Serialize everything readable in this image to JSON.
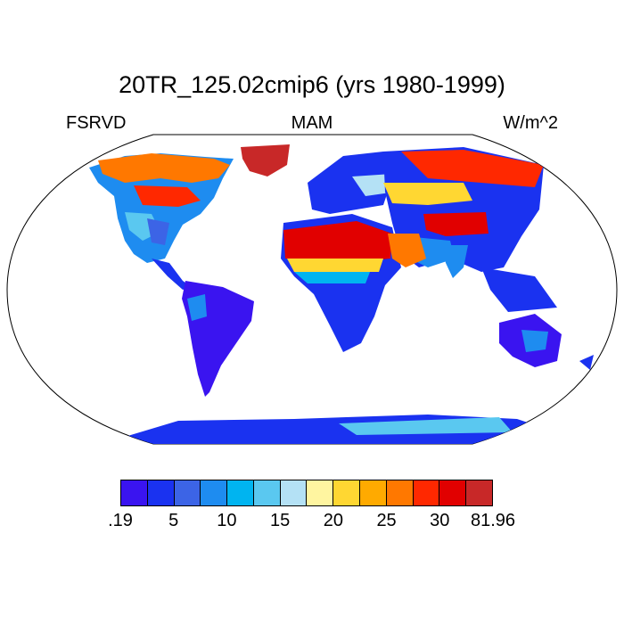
{
  "title": "20TR_125.02cmip6 (yrs 1980-1999)",
  "left_label": "FSRVD",
  "center_label": "MAM",
  "right_label": "W/m^2",
  "colorbar": {
    "colors": [
      "#3a14f0",
      "#1a32f0",
      "#3c64e6",
      "#1e8cf0",
      "#00b4f0",
      "#5ac8f0",
      "#b4e1f5",
      "#fff5a0",
      "#ffd732",
      "#ffaa00",
      "#ff7800",
      "#ff2800",
      "#e10000",
      "#c82828"
    ],
    "labels": [
      ".19",
      "5",
      "10",
      "15",
      "20",
      "25",
      "30",
      "81.96"
    ]
  }
}
